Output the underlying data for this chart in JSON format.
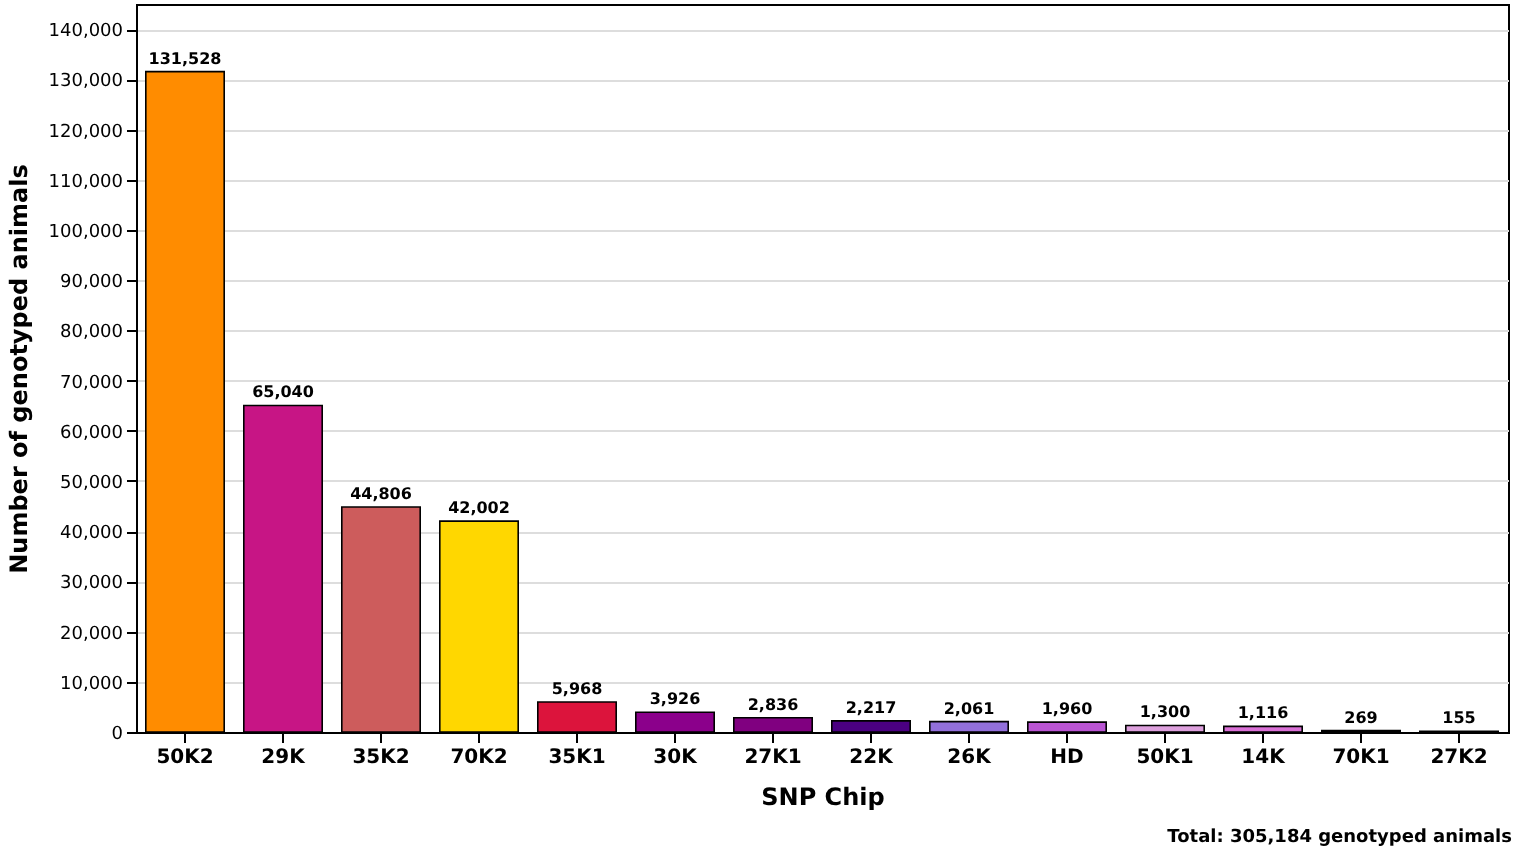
{
  "chart_data": {
    "type": "bar",
    "xlabel": "SNP Chip",
    "ylabel": "Number of genotyped animals",
    "categories": [
      "50K2",
      "29K",
      "35K2",
      "70K2",
      "35K1",
      "30K",
      "27K1",
      "22K",
      "26K",
      "HD",
      "50K1",
      "14K",
      "70K1",
      "27K2"
    ],
    "values": [
      131528,
      65040,
      44806,
      42002,
      5968,
      3926,
      2836,
      2217,
      2061,
      1960,
      1300,
      1116,
      269,
      155
    ],
    "value_labels": [
      "131,528",
      "65,040",
      "44,806",
      "42,002",
      "5,968",
      "3,926",
      "2,836",
      "2,217",
      "2,061",
      "1,960",
      "1,300",
      "1,116",
      "269",
      "155"
    ],
    "colors": [
      "#ff8c00",
      "#c71585",
      "#cd5c5c",
      "#ffd700",
      "#dc143c",
      "#8b008b",
      "#800080",
      "#4b0082",
      "#9370db",
      "#ba55d3",
      "#dda0dd",
      "#da70d6",
      "#d8bfd8",
      "#e6e6fa"
    ],
    "ylim": [
      0,
      145000
    ],
    "yticks": [
      {
        "value": 0,
        "label": "0"
      },
      {
        "value": 10000,
        "label": "10,000"
      },
      {
        "value": 20000,
        "label": "20,000"
      },
      {
        "value": 30000,
        "label": "30,000"
      },
      {
        "value": 40000,
        "label": "40,000"
      },
      {
        "value": 50000,
        "label": "50,000"
      },
      {
        "value": 60000,
        "label": "60,000"
      },
      {
        "value": 70000,
        "label": "70,000"
      },
      {
        "value": 80000,
        "label": "80,000"
      },
      {
        "value": 90000,
        "label": "90,000"
      },
      {
        "value": 100000,
        "label": "100,000"
      },
      {
        "value": 110000,
        "label": "110,000"
      },
      {
        "value": 120000,
        "label": "120,000"
      },
      {
        "value": 130000,
        "label": "130,000"
      },
      {
        "value": 140000,
        "label": "140,000"
      }
    ],
    "grid": "y",
    "annotations": [
      "Total: 305,184 genotyped animals"
    ]
  }
}
